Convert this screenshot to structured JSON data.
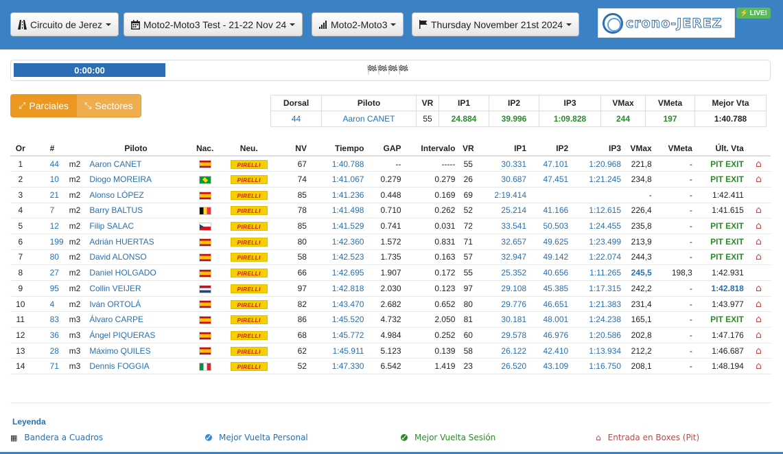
{
  "toolbar": {
    "circuit": "Circuito de Jerez",
    "event": "Moto2-Moto3 Test - 21-22 Nov 24",
    "category": "Moto2-Moto3",
    "date": "Thursday November 21st 2024",
    "logo_text": "crono-JEREZ",
    "live_label": "LIVE!"
  },
  "session": {
    "timer": "0:00:00",
    "flags": "🏁🏁🏁🏁"
  },
  "view_buttons": {
    "parciales": "Parciales",
    "sectores": "Sectores"
  },
  "best": {
    "headers": [
      "Dorsal",
      "Piloto",
      "VR",
      "IP1",
      "IP2",
      "IP3",
      "VMax",
      "VMeta",
      "Mejor Vta"
    ],
    "values": [
      "44",
      "Aaron CANET",
      "55",
      "24.884",
      "39.996",
      "1:09.828",
      "244",
      "197",
      "1:40.788"
    ]
  },
  "table": {
    "headers": [
      "Or",
      "#",
      "",
      "Piloto",
      "Nac.",
      "Neu.",
      "NV",
      "Tiempo",
      "GAP",
      "Intervalo",
      "VR",
      "IP1",
      "IP2",
      "IP3",
      "VMax",
      "VMeta",
      "Últ. Vta",
      ""
    ],
    "tyre_label": "PIRELLI",
    "pit_exit_label": "PIT EXIT",
    "rows": [
      {
        "pos": "1",
        "num": "44",
        "cat": "m2",
        "name": "Aaron CANET",
        "nat": "es",
        "nv": "67",
        "time": "1:40.788",
        "gap": "--",
        "int": "-----",
        "vr": "55",
        "ip1": "30.331",
        "ip2": "47.101",
        "ip3": "1:20.968",
        "vmax": "221,8",
        "vmeta": "-",
        "last": "PIT EXIT",
        "pit": true
      },
      {
        "pos": "2",
        "num": "10",
        "cat": "m2",
        "name": "Diogo MOREIRA",
        "nat": "br",
        "nv": "74",
        "time": "1:41.067",
        "gap": "0.279",
        "int": "0.279",
        "vr": "26",
        "ip1": "30.687",
        "ip2": "47.451",
        "ip3": "1:21.245",
        "vmax": "234,8",
        "vmeta": "-",
        "last": "PIT EXIT",
        "pit": true
      },
      {
        "pos": "3",
        "num": "21",
        "cat": "m2",
        "name": "Alonso LÓPEZ",
        "nat": "es",
        "nv": "85",
        "time": "1:41.236",
        "gap": "0.448",
        "int": "0.169",
        "vr": "69",
        "ip1": "2:19.414",
        "ip2": "",
        "ip3": "",
        "vmax": "-",
        "vmeta": "-",
        "last": "1:42.411",
        "pit": false
      },
      {
        "pos": "4",
        "num": "7",
        "cat": "m2",
        "name": "Barry BALTUS",
        "nat": "be",
        "nv": "78",
        "time": "1:41.498",
        "gap": "0.710",
        "int": "0.262",
        "vr": "52",
        "ip1": "25.214",
        "ip2": "41.166",
        "ip3": "1:12.615",
        "vmax": "226,4",
        "vmeta": "-",
        "last": "1:41.615",
        "pit": true
      },
      {
        "pos": "5",
        "num": "12",
        "cat": "m2",
        "name": "Filip SALAC",
        "nat": "cz",
        "nv": "85",
        "time": "1:41.529",
        "gap": "0.741",
        "int": "0.031",
        "vr": "72",
        "ip1": "33.541",
        "ip2": "50.503",
        "ip3": "1:24.455",
        "vmax": "235,8",
        "vmeta": "-",
        "last": "PIT EXIT",
        "pit": true
      },
      {
        "pos": "6",
        "num": "199",
        "cat": "m2",
        "name": "Adrián HUERTAS",
        "nat": "es",
        "nv": "80",
        "time": "1:42.360",
        "gap": "1.572",
        "int": "0.831",
        "vr": "71",
        "ip1": "32.657",
        "ip2": "49.625",
        "ip3": "1:23.499",
        "vmax": "213,9",
        "vmeta": "-",
        "last": "PIT EXIT",
        "pit": true
      },
      {
        "pos": "7",
        "num": "80",
        "cat": "m2",
        "name": "David ALONSO",
        "nat": "es",
        "nv": "58",
        "time": "1:42.523",
        "gap": "1.735",
        "int": "0.163",
        "vr": "57",
        "ip1": "32.947",
        "ip2": "49.142",
        "ip3": "1:22.074",
        "vmax": "244,3",
        "vmeta": "-",
        "last": "PIT EXIT",
        "pit": true
      },
      {
        "pos": "8",
        "num": "27",
        "cat": "m2",
        "name": "Daniel HOLGADO",
        "nat": "es",
        "nv": "66",
        "time": "1:42.695",
        "gap": "1.907",
        "int": "0.172",
        "vr": "55",
        "ip1": "25.352",
        "ip2": "40.656",
        "ip3": "1:11.265",
        "vmax": "245,5",
        "vmeta": "198,3",
        "last": "1:42.931",
        "pit": false
      },
      {
        "pos": "9",
        "num": "95",
        "cat": "m2",
        "name": "Collin VEIJER",
        "nat": "nl",
        "nv": "97",
        "time": "1:42.818",
        "gap": "2.030",
        "int": "0.123",
        "vr": "97",
        "ip1": "29.108",
        "ip2": "45.385",
        "ip3": "1:17.315",
        "vmax": "242,2",
        "vmeta": "-",
        "last": "1:42.818",
        "pit": true
      },
      {
        "pos": "10",
        "num": "4",
        "cat": "m2",
        "name": "Iván ORTOLÁ",
        "nat": "es",
        "nv": "82",
        "time": "1:43.470",
        "gap": "2.682",
        "int": "0.652",
        "vr": "80",
        "ip1": "29.776",
        "ip2": "46.651",
        "ip3": "1:21.383",
        "vmax": "231,4",
        "vmeta": "-",
        "last": "1:43.977",
        "pit": true
      },
      {
        "pos": "11",
        "num": "83",
        "cat": "m3",
        "name": "Álvaro CARPE",
        "nat": "es",
        "nv": "86",
        "time": "1:45.520",
        "gap": "4.732",
        "int": "2.050",
        "vr": "81",
        "ip1": "30.181",
        "ip2": "48.001",
        "ip3": "1:24.238",
        "vmax": "165,1",
        "vmeta": "-",
        "last": "PIT EXIT",
        "pit": true
      },
      {
        "pos": "12",
        "num": "36",
        "cat": "m3",
        "name": "Ángel PIQUERAS",
        "nat": "es",
        "nv": "68",
        "time": "1:45.772",
        "gap": "4.984",
        "int": "0.252",
        "vr": "60",
        "ip1": "29.578",
        "ip2": "46.976",
        "ip3": "1:20.586",
        "vmax": "202,8",
        "vmeta": "-",
        "last": "1:47.176",
        "pit": true
      },
      {
        "pos": "13",
        "num": "28",
        "cat": "m3",
        "name": "Máximo QUILES",
        "nat": "es",
        "nv": "62",
        "time": "1:45.911",
        "gap": "5.123",
        "int": "0.139",
        "vr": "58",
        "ip1": "26.122",
        "ip2": "42.410",
        "ip3": "1:13.934",
        "vmax": "212,2",
        "vmeta": "-",
        "last": "1:46.687",
        "pit": true
      },
      {
        "pos": "14",
        "num": "71",
        "cat": "m3",
        "name": "Dennis FOGGIA",
        "nat": "it",
        "nv": "52",
        "time": "1:47.330",
        "gap": "6.542",
        "int": "1.419",
        "vr": "23",
        "ip1": "26.520",
        "ip2": "43.109",
        "ip3": "1:16.750",
        "vmax": "208,1",
        "vmeta": "-",
        "last": "1:48.194",
        "pit": true
      }
    ]
  },
  "legend": {
    "title": "Leyenda",
    "checkered": "Bandera a Cuadros",
    "personal_best": "Mejor Vuelta Personal",
    "session_best": "Mejor Vuelta Sesión",
    "pit_entry": "Entrada en Boxes (Pit)"
  },
  "colors": {
    "header_blue": "#3a82c4",
    "accent_blue": "#2a6fb0",
    "green": "#2a8a2a",
    "pit_red": "#b94a48",
    "orange": "#f0ad4e"
  }
}
